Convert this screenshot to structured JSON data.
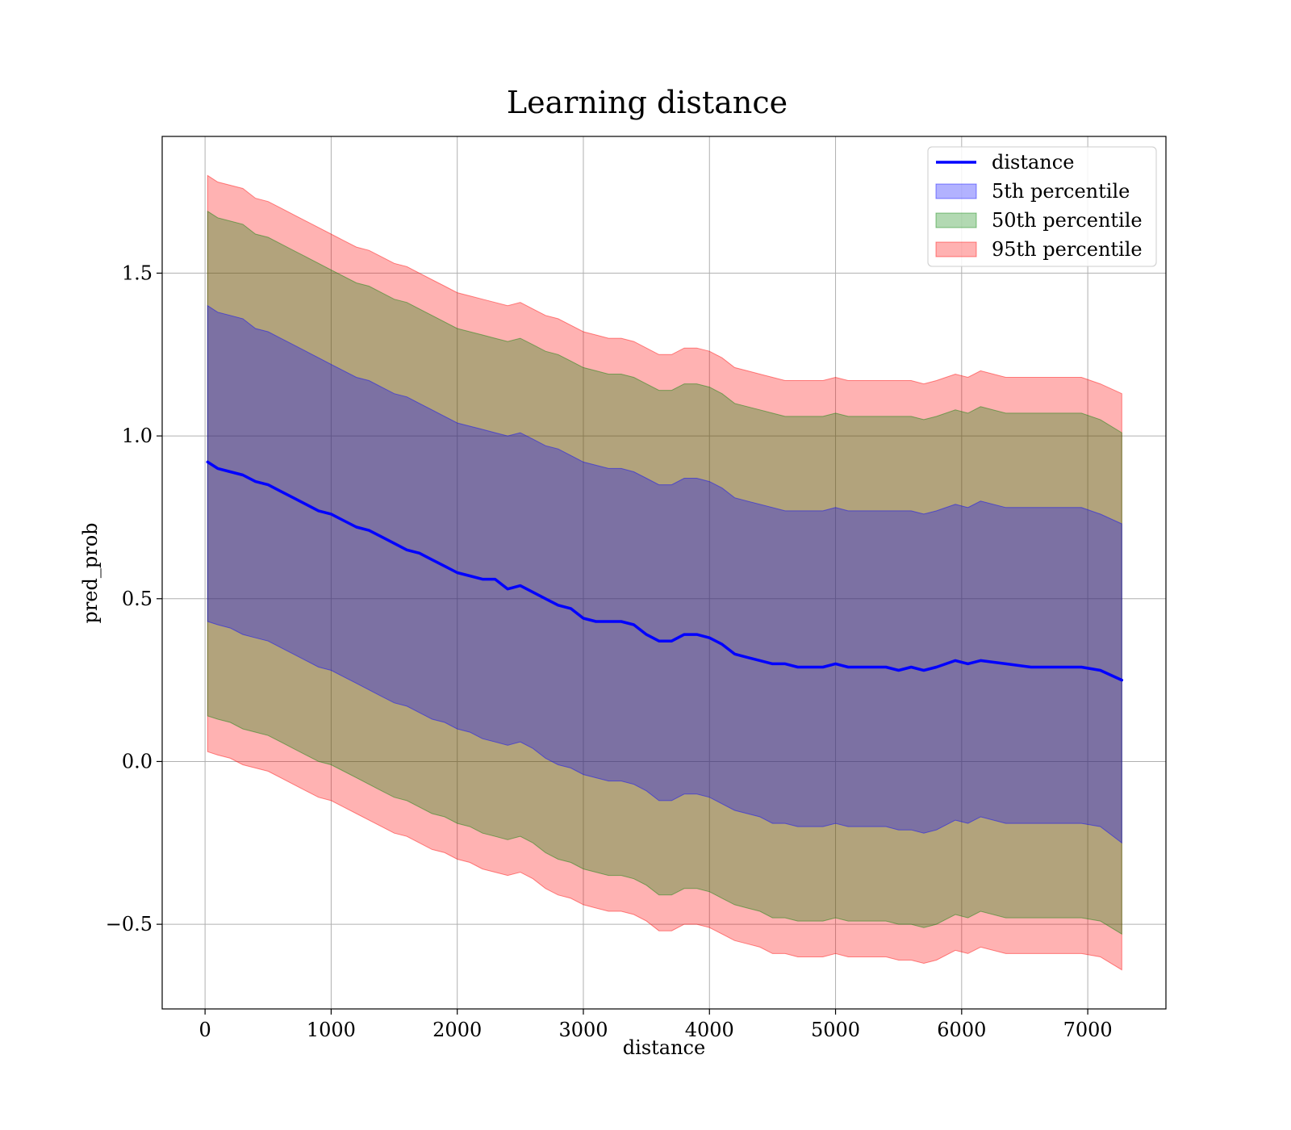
{
  "chart_data": {
    "type": "area",
    "title": "Learning distance",
    "xlabel": "distance",
    "ylabel": "pred_prob",
    "xlim": [
      -340,
      7620
    ],
    "ylim": [
      -0.76,
      1.92
    ],
    "xticks": [
      0,
      1000,
      2000,
      3000,
      4000,
      5000,
      6000,
      7000
    ],
    "yticks": [
      -0.5,
      0.0,
      0.5,
      1.0,
      1.5
    ],
    "ytick_labels": [
      "−0.5",
      "0.0",
      "0.5",
      "1.0",
      "1.5"
    ],
    "grid": true,
    "legend_position": "top-right",
    "x": [
      20,
      100,
      200,
      300,
      400,
      500,
      600,
      700,
      800,
      900,
      1000,
      1100,
      1200,
      1300,
      1400,
      1500,
      1600,
      1700,
      1800,
      1900,
      2000,
      2100,
      2200,
      2300,
      2400,
      2500,
      2600,
      2700,
      2800,
      2900,
      3000,
      3100,
      3200,
      3300,
      3400,
      3500,
      3600,
      3700,
      3800,
      3900,
      4000,
      4100,
      4200,
      4300,
      4400,
      4500,
      4600,
      4700,
      4800,
      4900,
      5000,
      5100,
      5200,
      5300,
      5400,
      5500,
      5600,
      5700,
      5800,
      5950,
      6050,
      6150,
      6350,
      6550,
      6750,
      6950,
      7100,
      7270
    ],
    "series": [
      {
        "name": "distance",
        "kind": "line",
        "color": "#0000ff",
        "values": [
          0.92,
          0.9,
          0.89,
          0.88,
          0.86,
          0.85,
          0.83,
          0.81,
          0.79,
          0.77,
          0.76,
          0.74,
          0.72,
          0.71,
          0.69,
          0.67,
          0.65,
          0.64,
          0.62,
          0.6,
          0.58,
          0.57,
          0.56,
          0.56,
          0.53,
          0.54,
          0.52,
          0.5,
          0.48,
          0.47,
          0.44,
          0.43,
          0.43,
          0.43,
          0.42,
          0.39,
          0.37,
          0.37,
          0.39,
          0.39,
          0.38,
          0.36,
          0.33,
          0.32,
          0.31,
          0.3,
          0.3,
          0.29,
          0.29,
          0.29,
          0.3,
          0.29,
          0.29,
          0.29,
          0.29,
          0.28,
          0.29,
          0.28,
          0.29,
          0.31,
          0.3,
          0.31,
          0.3,
          0.29,
          0.29,
          0.29,
          0.28,
          0.25
        ]
      },
      {
        "name": "5th percentile",
        "kind": "band",
        "color": "#0000ff",
        "opacity": 0.3,
        "upper": [
          1.4,
          1.38,
          1.37,
          1.36,
          1.33,
          1.32,
          1.3,
          1.28,
          1.26,
          1.24,
          1.22,
          1.2,
          1.18,
          1.17,
          1.15,
          1.13,
          1.12,
          1.1,
          1.08,
          1.06,
          1.04,
          1.03,
          1.02,
          1.01,
          1.0,
          1.01,
          0.99,
          0.97,
          0.96,
          0.94,
          0.92,
          0.91,
          0.9,
          0.9,
          0.89,
          0.87,
          0.85,
          0.85,
          0.87,
          0.87,
          0.86,
          0.84,
          0.81,
          0.8,
          0.79,
          0.78,
          0.77,
          0.77,
          0.77,
          0.77,
          0.78,
          0.77,
          0.77,
          0.77,
          0.77,
          0.77,
          0.77,
          0.76,
          0.77,
          0.79,
          0.78,
          0.8,
          0.78,
          0.78,
          0.78,
          0.78,
          0.76,
          0.73
        ],
        "lower": [
          0.43,
          0.42,
          0.41,
          0.39,
          0.38,
          0.37,
          0.35,
          0.33,
          0.31,
          0.29,
          0.28,
          0.26,
          0.24,
          0.22,
          0.2,
          0.18,
          0.17,
          0.15,
          0.13,
          0.12,
          0.1,
          0.09,
          0.07,
          0.06,
          0.05,
          0.06,
          0.04,
          0.01,
          -0.01,
          -0.02,
          -0.04,
          -0.05,
          -0.06,
          -0.06,
          -0.07,
          -0.09,
          -0.12,
          -0.12,
          -0.1,
          -0.1,
          -0.11,
          -0.13,
          -0.15,
          -0.16,
          -0.17,
          -0.19,
          -0.19,
          -0.2,
          -0.2,
          -0.2,
          -0.19,
          -0.2,
          -0.2,
          -0.2,
          -0.2,
          -0.21,
          -0.21,
          -0.22,
          -0.21,
          -0.18,
          -0.19,
          -0.17,
          -0.19,
          -0.19,
          -0.19,
          -0.19,
          -0.2,
          -0.25
        ]
      },
      {
        "name": "50th percentile",
        "kind": "band",
        "color": "#008000",
        "opacity": 0.3,
        "upper": [
          1.69,
          1.67,
          1.66,
          1.65,
          1.62,
          1.61,
          1.59,
          1.57,
          1.55,
          1.53,
          1.51,
          1.49,
          1.47,
          1.46,
          1.44,
          1.42,
          1.41,
          1.39,
          1.37,
          1.35,
          1.33,
          1.32,
          1.31,
          1.3,
          1.29,
          1.3,
          1.28,
          1.26,
          1.25,
          1.23,
          1.21,
          1.2,
          1.19,
          1.19,
          1.18,
          1.16,
          1.14,
          1.14,
          1.16,
          1.16,
          1.15,
          1.13,
          1.1,
          1.09,
          1.08,
          1.07,
          1.06,
          1.06,
          1.06,
          1.06,
          1.07,
          1.06,
          1.06,
          1.06,
          1.06,
          1.06,
          1.06,
          1.05,
          1.06,
          1.08,
          1.07,
          1.09,
          1.07,
          1.07,
          1.07,
          1.07,
          1.05,
          1.01
        ],
        "lower": [
          0.14,
          0.13,
          0.12,
          0.1,
          0.09,
          0.08,
          0.06,
          0.04,
          0.02,
          0.0,
          -0.01,
          -0.03,
          -0.05,
          -0.07,
          -0.09,
          -0.11,
          -0.12,
          -0.14,
          -0.16,
          -0.17,
          -0.19,
          -0.2,
          -0.22,
          -0.23,
          -0.24,
          -0.23,
          -0.25,
          -0.28,
          -0.3,
          -0.31,
          -0.33,
          -0.34,
          -0.35,
          -0.35,
          -0.36,
          -0.38,
          -0.41,
          -0.41,
          -0.39,
          -0.39,
          -0.4,
          -0.42,
          -0.44,
          -0.45,
          -0.46,
          -0.48,
          -0.48,
          -0.49,
          -0.49,
          -0.49,
          -0.48,
          -0.49,
          -0.49,
          -0.49,
          -0.49,
          -0.5,
          -0.5,
          -0.51,
          -0.5,
          -0.47,
          -0.48,
          -0.46,
          -0.48,
          -0.48,
          -0.48,
          -0.48,
          -0.49,
          -0.53
        ]
      },
      {
        "name": "95th percentile",
        "kind": "band",
        "color": "#ff0000",
        "opacity": 0.3,
        "upper": [
          1.8,
          1.78,
          1.77,
          1.76,
          1.73,
          1.72,
          1.7,
          1.68,
          1.66,
          1.64,
          1.62,
          1.6,
          1.58,
          1.57,
          1.55,
          1.53,
          1.52,
          1.5,
          1.48,
          1.46,
          1.44,
          1.43,
          1.42,
          1.41,
          1.4,
          1.41,
          1.39,
          1.37,
          1.36,
          1.34,
          1.32,
          1.31,
          1.3,
          1.3,
          1.29,
          1.27,
          1.25,
          1.25,
          1.27,
          1.27,
          1.26,
          1.24,
          1.21,
          1.2,
          1.19,
          1.18,
          1.17,
          1.17,
          1.17,
          1.17,
          1.18,
          1.17,
          1.17,
          1.17,
          1.17,
          1.17,
          1.17,
          1.16,
          1.17,
          1.19,
          1.18,
          1.2,
          1.18,
          1.18,
          1.18,
          1.18,
          1.16,
          1.13
        ],
        "lower": [
          0.03,
          0.02,
          0.01,
          -0.01,
          -0.02,
          -0.03,
          -0.05,
          -0.07,
          -0.09,
          -0.11,
          -0.12,
          -0.14,
          -0.16,
          -0.18,
          -0.2,
          -0.22,
          -0.23,
          -0.25,
          -0.27,
          -0.28,
          -0.3,
          -0.31,
          -0.33,
          -0.34,
          -0.35,
          -0.34,
          -0.36,
          -0.39,
          -0.41,
          -0.42,
          -0.44,
          -0.45,
          -0.46,
          -0.46,
          -0.47,
          -0.49,
          -0.52,
          -0.52,
          -0.5,
          -0.5,
          -0.51,
          -0.53,
          -0.55,
          -0.56,
          -0.57,
          -0.59,
          -0.59,
          -0.6,
          -0.6,
          -0.6,
          -0.59,
          -0.6,
          -0.6,
          -0.6,
          -0.6,
          -0.61,
          -0.61,
          -0.62,
          -0.61,
          -0.58,
          -0.59,
          -0.57,
          -0.59,
          -0.59,
          -0.59,
          -0.59,
          -0.6,
          -0.64
        ]
      }
    ]
  }
}
